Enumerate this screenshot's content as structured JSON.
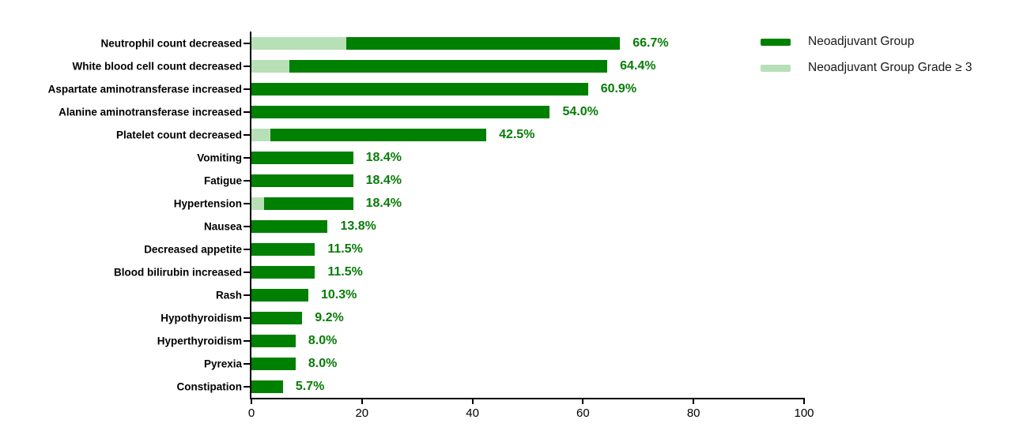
{
  "chart_data": {
    "type": "bar",
    "orientation": "horizontal",
    "title": "",
    "xlabel": "",
    "ylabel": "",
    "categories": [
      "Neutrophil count decreased",
      "White blood cell count decreased",
      "Aspartate aminotransferase increased",
      "Alanine aminotransferase increased",
      "Platelet count decreased",
      "Vomiting",
      "Fatigue",
      "Hypertension",
      "Nausea",
      "Decreased appetite",
      "Blood bilirubin increased",
      "Rash",
      "Hypothyroidism",
      "Hyperthyroidism",
      "Pyrexia",
      "Constipation"
    ],
    "series": [
      {
        "name": "Neoadjuvant Group",
        "color": "#008000",
        "values": [
          66.7,
          64.4,
          60.9,
          54.0,
          42.5,
          18.4,
          18.4,
          18.4,
          13.8,
          11.5,
          11.5,
          10.3,
          9.2,
          8.0,
          8.0,
          5.7
        ]
      },
      {
        "name": "Neoadjuvant Group Grade ≥ 3",
        "color": "#b7e0b7",
        "values": [
          17.2,
          6.9,
          0,
          0,
          3.4,
          0,
          0,
          2.3,
          0,
          0,
          0,
          0,
          0,
          0,
          0,
          0
        ]
      }
    ],
    "value_labels": [
      "66.7%",
      "64.4%",
      "60.9%",
      "54.0%",
      "42.5%",
      "18.4%",
      "18.4%",
      "18.4%",
      "13.8%",
      "11.5%",
      "11.5%",
      "10.3%",
      "9.2%",
      "8.0%",
      "8.0%",
      "5.7%"
    ],
    "xlim": [
      0,
      100
    ],
    "xticks": [
      0,
      20,
      40,
      60,
      80,
      100
    ],
    "grid": false,
    "legend_position": "top-right"
  },
  "legend": {
    "items": [
      {
        "label": "Neoadjuvant Group",
        "color": "#008000"
      },
      {
        "label": "Neoadjuvant Group Grade ≥ 3",
        "color": "#b7e0b7"
      }
    ]
  },
  "colors": {
    "bar_dark": "#008000",
    "bar_light": "#b7e0b7",
    "value_text": "#077c07",
    "axis": "#000000",
    "background": "#ffffff"
  }
}
